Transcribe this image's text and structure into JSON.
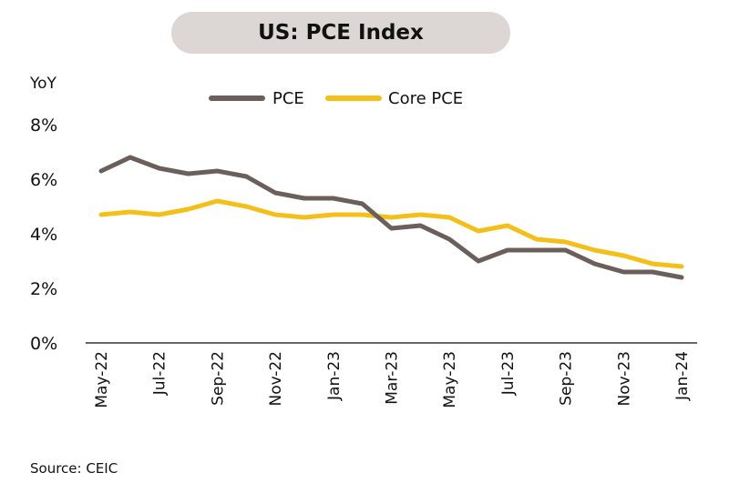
{
  "source": "Source: CEIC",
  "colors": {
    "pce": "#6b5f5c",
    "core_pce": "#f5bf1a",
    "title_bg": "#dcd6d4",
    "axis": "#333333"
  },
  "chart_data": {
    "type": "line",
    "title": "US: PCE Index",
    "ylabel": "YoY",
    "ylim": [
      0,
      8
    ],
    "yticks": [
      0,
      2,
      4,
      6,
      8
    ],
    "ytick_labels": [
      "0%",
      "2%",
      "4%",
      "6%",
      "8%"
    ],
    "legend_position": "top",
    "x": [
      "May-22",
      "Jun-22",
      "Jul-22",
      "Aug-22",
      "Sep-22",
      "Oct-22",
      "Nov-22",
      "Dec-22",
      "Jan-23",
      "Feb-23",
      "Mar-23",
      "Apr-23",
      "May-23",
      "Jun-23",
      "Jul-23",
      "Aug-23",
      "Sep-23",
      "Oct-23",
      "Nov-23",
      "Dec-23",
      "Jan-24"
    ],
    "x_tick_labels": [
      "May-22",
      "Jul-22",
      "Sep-22",
      "Nov-22",
      "Jan-23",
      "Mar-23",
      "May-23",
      "Jul-23",
      "Sep-23",
      "Nov-23",
      "Jan-24"
    ],
    "series": [
      {
        "name": "PCE",
        "values": [
          6.3,
          6.8,
          6.4,
          6.2,
          6.3,
          6.1,
          5.5,
          5.3,
          5.3,
          5.1,
          4.2,
          4.3,
          3.8,
          3.0,
          3.4,
          3.4,
          3.4,
          2.9,
          2.6,
          2.6,
          2.4
        ]
      },
      {
        "name": "Core PCE",
        "values": [
          4.7,
          4.8,
          4.7,
          4.9,
          5.2,
          5.0,
          4.7,
          4.6,
          4.7,
          4.7,
          4.6,
          4.7,
          4.6,
          4.1,
          4.3,
          3.8,
          3.7,
          3.4,
          3.2,
          2.9,
          2.8
        ]
      }
    ]
  }
}
